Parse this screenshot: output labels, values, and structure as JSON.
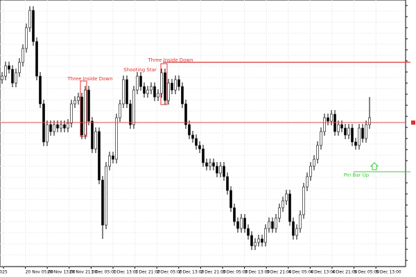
{
  "chart_data": {
    "type": "candlestick",
    "x_labels": [
      "025",
      "20 Nov 05:00",
      "20 Nov 13:00",
      "20 Nov 21:00",
      "1 Dec 05:00",
      "1 Dec 13:00",
      "1 Dec 21:00",
      "2 Dec 05:00",
      "2 Dec 13:00",
      "2 Dec 21:00",
      "3 Dec 05:00",
      "3 Dec 13:00",
      "3 Dec 21:00",
      "4 Dec 05:00",
      "4 Dec 13:00",
      "4 Dec 21:00",
      "5 Dec 05:00",
      "5 Dec 13:00"
    ],
    "ylim": [
      0,
      385
    ],
    "open": [
      270,
      275,
      290,
      285,
      265,
      280,
      295,
      315,
      345,
      370,
      325,
      275,
      235,
      180,
      205,
      195,
      205,
      200,
      205,
      200,
      207,
      235,
      240,
      245,
      190,
      255,
      210,
      170,
      195,
      125,
      60,
      145,
      160,
      155,
      215,
      235,
      270,
      235,
      205,
      255,
      275,
      260,
      250,
      255,
      260,
      245,
      250,
      280,
      240,
      265,
      255,
      270,
      260,
      235,
      205,
      190,
      185,
      175,
      170,
      150,
      145,
      150,
      145,
      135,
      145,
      130,
      110,
      85,
      65,
      55,
      70,
      55,
      45,
      30,
      35,
      40,
      35,
      55,
      65,
      55,
      70,
      85,
      95,
      105,
      65,
      45,
      55,
      75,
      115,
      130,
      145,
      155,
      175,
      195,
      215,
      210,
      220,
      195,
      205,
      200,
      190,
      200,
      180,
      175,
      200,
      185,
      205
    ],
    "high": [
      281,
      296,
      296,
      291,
      286,
      301,
      321,
      351,
      376,
      376,
      331,
      281,
      241,
      211,
      211,
      211,
      211,
      211,
      211,
      213,
      241,
      246,
      251,
      251,
      261,
      261,
      216,
      201,
      201,
      131,
      151,
      166,
      166,
      221,
      241,
      276,
      276,
      241,
      261,
      281,
      281,
      266,
      261,
      266,
      266,
      256,
      286,
      286,
      271,
      271,
      276,
      276,
      266,
      241,
      211,
      196,
      191,
      181,
      176,
      156,
      156,
      156,
      151,
      151,
      151,
      136,
      116,
      91,
      71,
      76,
      76,
      61,
      51,
      41,
      46,
      46,
      61,
      71,
      71,
      76,
      91,
      101,
      111,
      111,
      71,
      61,
      81,
      121,
      136,
      151,
      161,
      181,
      201,
      221,
      221,
      226,
      226,
      211,
      211,
      206,
      206,
      206,
      186,
      206,
      206,
      211,
      245
    ],
    "low": [
      264,
      269,
      279,
      259,
      259,
      274,
      289,
      309,
      339,
      319,
      269,
      229,
      174,
      174,
      189,
      189,
      194,
      194,
      194,
      194,
      201,
      229,
      234,
      184,
      184,
      204,
      164,
      164,
      119,
      40,
      54,
      139,
      149,
      149,
      209,
      229,
      229,
      199,
      199,
      249,
      254,
      244,
      244,
      249,
      239,
      239,
      244,
      234,
      234,
      249,
      249,
      254,
      229,
      199,
      184,
      179,
      169,
      164,
      144,
      139,
      139,
      139,
      129,
      129,
      124,
      104,
      79,
      59,
      49,
      49,
      49,
      39,
      24,
      24,
      29,
      29,
      29,
      49,
      49,
      49,
      64,
      79,
      89,
      59,
      39,
      39,
      49,
      69,
      109,
      124,
      139,
      149,
      169,
      189,
      204,
      204,
      189,
      189,
      194,
      184,
      184,
      174,
      169,
      169,
      179,
      179,
      199
    ],
    "close": [
      275,
      290,
      285,
      265,
      280,
      295,
      315,
      345,
      370,
      325,
      275,
      235,
      180,
      205,
      195,
      205,
      200,
      205,
      200,
      207,
      235,
      240,
      245,
      190,
      255,
      210,
      170,
      195,
      125,
      60,
      145,
      160,
      155,
      215,
      235,
      270,
      235,
      205,
      255,
      275,
      260,
      250,
      255,
      260,
      245,
      250,
      280,
      240,
      265,
      255,
      270,
      260,
      235,
      205,
      190,
      185,
      175,
      170,
      150,
      145,
      150,
      145,
      135,
      145,
      130,
      110,
      85,
      65,
      55,
      70,
      55,
      45,
      30,
      35,
      40,
      35,
      55,
      65,
      55,
      70,
      85,
      95,
      105,
      65,
      45,
      55,
      75,
      115,
      130,
      145,
      155,
      175,
      195,
      215,
      210,
      220,
      195,
      205,
      200,
      190,
      200,
      180,
      175,
      200,
      185,
      205,
      215
    ],
    "levels": [
      {
        "value": 208,
        "color": "#e05050"
      },
      {
        "value": 295,
        "color": "#e05050"
      },
      {
        "value": 137,
        "color": "#33cc33"
      }
    ],
    "annotations": [
      "Three Inside Down",
      "Shooting Star",
      "Three Inside Down",
      "Pin Bar Up"
    ]
  }
}
